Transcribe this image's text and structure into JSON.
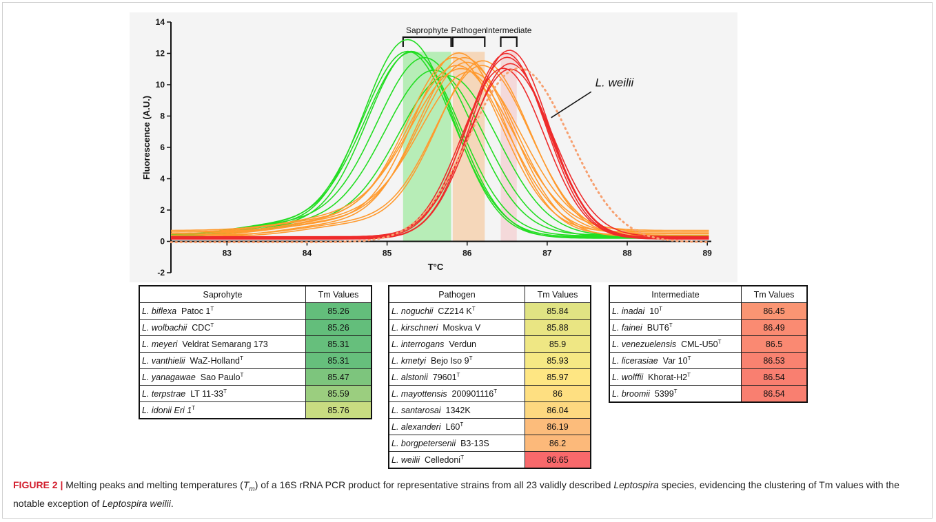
{
  "chart_data": {
    "type": "line",
    "xlabel": "T°C",
    "ylabel": "Fluorescence (A.U.)",
    "xlim": [
      82.3,
      89.05
    ],
    "ylim": [
      -2,
      14
    ],
    "xticks": [
      83,
      84,
      85,
      86,
      87,
      88,
      89
    ],
    "yticks": [
      -2,
      0,
      2,
      4,
      6,
      8,
      10,
      12,
      14
    ],
    "groups": [
      {
        "name": "Saprophyte",
        "band": [
          85.2,
          85.8
        ],
        "color": "#44e044"
      },
      {
        "name": "Pathogen",
        "band": [
          85.82,
          86.22
        ],
        "color": "#f6a04c"
      },
      {
        "name": "Intermediate",
        "band": [
          86.42,
          86.62
        ],
        "color": "#f4a6a8"
      }
    ],
    "series": [
      {
        "group": "Saprophyte",
        "tm": 85.26,
        "peak": 12.6,
        "width": 0.85,
        "base": 0.25
      },
      {
        "group": "Saprophyte",
        "tm": 85.26,
        "peak": 11.8,
        "width": 0.88,
        "base": 0.3
      },
      {
        "group": "Saprophyte",
        "tm": 85.31,
        "peak": 11.7,
        "width": 0.9,
        "base": 0.35
      },
      {
        "group": "Saprophyte",
        "tm": 85.31,
        "peak": 11.9,
        "width": 0.86,
        "base": 0.2
      },
      {
        "group": "Saprophyte",
        "tm": 85.47,
        "peak": 11.3,
        "width": 0.92,
        "base": 0.4
      },
      {
        "group": "Saprophyte",
        "tm": 85.59,
        "peak": 10.6,
        "width": 0.95,
        "base": 0.3
      },
      {
        "group": "Saprophyte",
        "tm": 85.76,
        "peak": 10.2,
        "width": 0.95,
        "base": 0.35
      },
      {
        "group": "Pathogen",
        "tm": 85.84,
        "peak": 11.1,
        "width": 0.9,
        "base": 0.6
      },
      {
        "group": "Pathogen",
        "tm": 85.88,
        "peak": 10.7,
        "width": 0.95,
        "base": 0.5
      },
      {
        "group": "Pathogen",
        "tm": 85.9,
        "peak": 11.6,
        "width": 0.88,
        "base": 0.4
      },
      {
        "group": "Pathogen",
        "tm": 85.93,
        "peak": 10.3,
        "width": 0.98,
        "base": 0.7
      },
      {
        "group": "Pathogen",
        "tm": 85.97,
        "peak": 11.4,
        "width": 0.9,
        "base": 0.3
      },
      {
        "group": "Pathogen",
        "tm": 86.0,
        "peak": 10.9,
        "width": 0.92,
        "base": 0.5
      },
      {
        "group": "Pathogen",
        "tm": 86.04,
        "peak": 10.2,
        "width": 0.97,
        "base": 0.6
      },
      {
        "group": "Pathogen",
        "tm": 86.19,
        "peak": 10.8,
        "width": 0.9,
        "base": 0.4
      },
      {
        "group": "Pathogen",
        "tm": 86.2,
        "peak": 11.2,
        "width": 0.88,
        "base": 0.3
      },
      {
        "group": "Intermediate",
        "tm": 86.45,
        "peak": 10.9,
        "width": 0.78,
        "base": 0.15
      },
      {
        "group": "Intermediate",
        "tm": 86.49,
        "peak": 11.8,
        "width": 0.75,
        "base": 0.2
      },
      {
        "group": "Intermediate",
        "tm": 86.5,
        "peak": 11.5,
        "width": 0.77,
        "base": 0.25
      },
      {
        "group": "Intermediate",
        "tm": 86.53,
        "peak": 12.0,
        "width": 0.74,
        "base": 0.2
      },
      {
        "group": "Intermediate",
        "tm": 86.54,
        "peak": 10.7,
        "width": 0.8,
        "base": 0.3
      },
      {
        "group": "Intermediate",
        "tm": 86.54,
        "peak": 11.2,
        "width": 0.76,
        "base": 0.15
      },
      {
        "group": "L. weilii",
        "tm": 86.65,
        "peak": 11.1,
        "width": 0.95,
        "base": -0.05,
        "dotted": true
      }
    ],
    "annotation": "L. weilii"
  },
  "tables": [
    {
      "header": [
        "Saprohyte",
        "Tm Values"
      ],
      "rows": [
        {
          "species": "L. biflexa",
          "strain": "Patoc 1",
          "type": true,
          "value": "85.26",
          "color": "#63be7b"
        },
        {
          "species": "L. wolbachii",
          "strain": "CDC",
          "type": true,
          "value": "85.26",
          "color": "#63be7b"
        },
        {
          "species": "L. meyeri",
          "strain": "Veldrat Semarang 173",
          "type": false,
          "value": "85.31",
          "color": "#66bf7c"
        },
        {
          "species": "L. vanthielii",
          "strain": "WaZ-Holland",
          "type": true,
          "value": "85.31",
          "color": "#66bf7c"
        },
        {
          "species": "L. yanagawae",
          "strain": "Sao Paulo",
          "type": true,
          "value": "85.47",
          "color": "#7dc57d"
        },
        {
          "species": "L. terpstrae",
          "strain": "LT 11-33",
          "type": true,
          "value": "85.59",
          "color": "#9bce7f"
        },
        {
          "species": "L. idonii Eri 1",
          "strain": "",
          "type": true,
          "value": "85.76",
          "color": "#c8dc81"
        }
      ]
    },
    {
      "header": [
        "Pathogen",
        "Tm Values"
      ],
      "rows": [
        {
          "species": "L. noguchii",
          "strain": "CZ214 K",
          "type": true,
          "value": "85.84",
          "color": "#e0e383"
        },
        {
          "species": "L. kirschneri",
          "strain": "Moskva V",
          "type": false,
          "value": "85.88",
          "color": "#e9e583"
        },
        {
          "species": "L. interrogans",
          "strain": "Verdun",
          "type": false,
          "value": "85.9",
          "color": "#efe784"
        },
        {
          "species": "L. kmetyi",
          "strain": "Bejo Iso 9",
          "type": true,
          "value": "85.93",
          "color": "#f6e984"
        },
        {
          "species": "L. alstonii",
          "strain": "79601",
          "type": true,
          "value": "85.97",
          "color": "#fee683"
        },
        {
          "species": "L. mayottensis",
          "strain": "200901116",
          "type": true,
          "value": "86",
          "color": "#fedf81"
        },
        {
          "species": "L. santarosai",
          "strain": "1342K",
          "type": false,
          "value": "86.04",
          "color": "#fdd880"
        },
        {
          "species": "L. alexanderi",
          "strain": "L60",
          "type": true,
          "value": "86.19",
          "color": "#fcbc7b"
        },
        {
          "species": "L. borgpetersenii",
          "strain": "B3-13S",
          "type": false,
          "value": "86.2",
          "color": "#fcb97a"
        },
        {
          "species": "L. weilii",
          "strain": "Celledoni",
          "type": true,
          "value": "86.65",
          "color": "#f8696b"
        }
      ]
    },
    {
      "header": [
        "Intermediate",
        "Tm Values"
      ],
      "rows": [
        {
          "species": "L. inadai",
          "strain": "10",
          "type": true,
          "value": "86.45",
          "color": "#fa9573"
        },
        {
          "species": "L. fainei",
          "strain": "BUT6",
          "type": true,
          "value": "86.49",
          "color": "#fa8b72"
        },
        {
          "species": "L. venezuelensis",
          "strain": "CML-U50",
          "type": true,
          "value": "86.5",
          "color": "#fa8972"
        },
        {
          "species": "L. licerasiae",
          "strain": "Var 10",
          "type": true,
          "value": "86.53",
          "color": "#f98270"
        },
        {
          "species": "L. wolffii",
          "strain": "Khorat-H2",
          "type": true,
          "value": "86.54",
          "color": "#f97f70"
        },
        {
          "species": "L. broomii",
          "strain": "5399",
          "type": true,
          "value": "86.54",
          "color": "#f97f70"
        }
      ]
    }
  ],
  "caption": {
    "label": "FIGURE 2 |",
    "t1": " Melting peaks and melting temperatures (",
    "tm_main": "T",
    "tm_sub": "m",
    "t2": ") of a 16S rRNA PCR product for representative strains from all 23 validly described ",
    "genus": "Leptospira",
    "t3": " species, evidencing the clustering of Tm values with the notable exception of ",
    "species": "Leptospira weilii",
    "t4": "."
  }
}
